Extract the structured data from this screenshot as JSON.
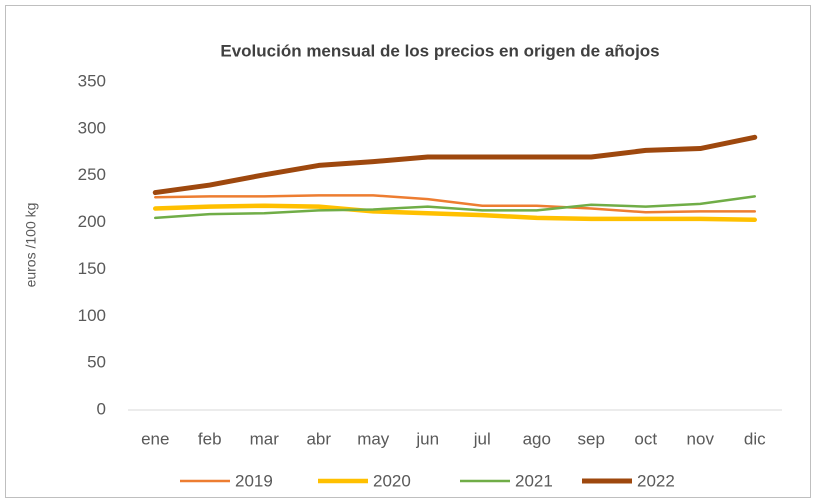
{
  "chart_data": {
    "type": "line",
    "title": "Evolución mensual de los precios en origen de añojos",
    "y_label": "euros /100 kg",
    "categories": [
      "ene",
      "feb",
      "mar",
      "abr",
      "may",
      "jun",
      "jul",
      "ago",
      "sep",
      "oct",
      "nov",
      "dic"
    ],
    "series": [
      {
        "name": "2019",
        "color": "#ED7D31",
        "values": [
          227,
          228,
          228,
          229,
          229,
          225,
          218,
          218,
          215,
          211,
          212,
          212
        ]
      },
      {
        "name": "2020",
        "color": "#FFC000",
        "values": [
          215,
          217,
          218,
          217,
          212,
          210,
          208,
          205,
          204,
          204,
          204,
          203
        ]
      },
      {
        "name": "2021",
        "color": "#70AD47",
        "values": [
          205,
          209,
          210,
          213,
          214,
          217,
          213,
          213,
          219,
          217,
          220,
          228
        ]
      },
      {
        "name": "2022",
        "color": "#9E480E",
        "values": [
          232,
          240,
          251,
          261,
          265,
          270,
          270,
          270,
          270,
          277,
          279,
          291
        ]
      }
    ],
    "ylim": [
      0,
      350
    ],
    "yticks": [
      0,
      50,
      100,
      150,
      200,
      250,
      300,
      350
    ],
    "grid": false,
    "legend": "bottom"
  }
}
